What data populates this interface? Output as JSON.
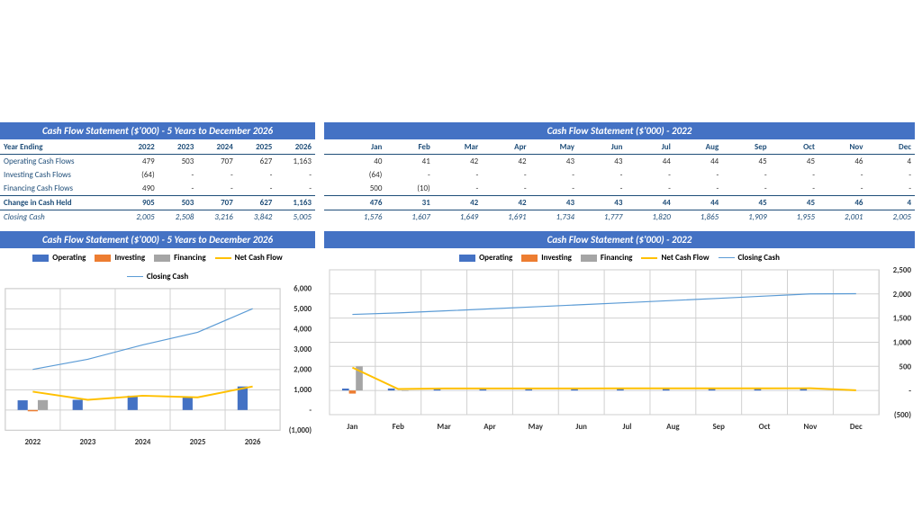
{
  "colors": {
    "header_bg": "#4472c4",
    "header_fg": "#ffffff",
    "navy": "#1f4e79",
    "operating": "#4472c4",
    "investing": "#ed7d31",
    "financing": "#a5a5a5",
    "net_cash": "#ffc000",
    "closing": "#5b9bd5",
    "grid": "#d0d0d0",
    "bg": "#ffffff"
  },
  "typography": {
    "font": "Calibri, Arial, sans-serif",
    "title_size": 11,
    "table_size": 9,
    "legend_size": 9
  },
  "left_table": {
    "title": "Cash Flow Statement ($'000) - 5 Years to December 2026",
    "header_label": "Year Ending",
    "columns": [
      "2022",
      "2023",
      "2024",
      "2025",
      "2026"
    ],
    "rows": [
      {
        "label": "Operating Cash Flows",
        "vals": [
          "479",
          "503",
          "707",
          "627",
          "1,163"
        ]
      },
      {
        "label": "Investing Cash Flows",
        "vals": [
          "(64)",
          "-",
          "-",
          "-",
          "-"
        ]
      },
      {
        "label": "Financing Cash Flows",
        "vals": [
          "490",
          "-",
          "-",
          "-",
          "-"
        ]
      }
    ],
    "change": {
      "label": "Change in Cash Held",
      "vals": [
        "905",
        "503",
        "707",
        "627",
        "1,163"
      ]
    },
    "closing": {
      "label": "Closing Cash",
      "vals": [
        "2,005",
        "2,508",
        "3,216",
        "3,842",
        "5,005"
      ]
    }
  },
  "right_table": {
    "title": "Cash Flow Statement ($'000) - 2022",
    "columns": [
      "Jan",
      "Feb",
      "Mar",
      "Apr",
      "May",
      "Jun",
      "Jul",
      "Aug",
      "Sep",
      "Oct",
      "Nov",
      "Dec"
    ],
    "rows": [
      {
        "vals": [
          "40",
          "41",
          "42",
          "42",
          "43",
          "43",
          "44",
          "44",
          "45",
          "45",
          "46",
          "4"
        ]
      },
      {
        "vals": [
          "(64)",
          "-",
          "-",
          "-",
          "-",
          "-",
          "-",
          "-",
          "-",
          "-",
          "-",
          "-"
        ]
      },
      {
        "vals": [
          "500",
          "(10)",
          "-",
          "-",
          "-",
          "-",
          "-",
          "-",
          "-",
          "-",
          "-",
          "-"
        ]
      }
    ],
    "change": {
      "vals": [
        "476",
        "31",
        "42",
        "42",
        "43",
        "43",
        "44",
        "44",
        "45",
        "45",
        "46",
        "4"
      ]
    },
    "closing": {
      "vals": [
        "1,576",
        "1,607",
        "1,649",
        "1,691",
        "1,734",
        "1,777",
        "1,820",
        "1,865",
        "1,909",
        "1,955",
        "2,001",
        "2,005"
      ]
    }
  },
  "legend_items": [
    {
      "label": "Operating",
      "type": "box",
      "color": "#4472c4"
    },
    {
      "label": "Investing",
      "type": "box",
      "color": "#ed7d31"
    },
    {
      "label": "Financing",
      "type": "box",
      "color": "#a5a5a5"
    },
    {
      "label": "Net Cash Flow",
      "type": "line",
      "color": "#ffc000"
    },
    {
      "label": "Closing Cash",
      "type": "thin",
      "color": "#5b9bd5"
    }
  ],
  "left_chart": {
    "title": "Cash Flow Statement ($'000) - 5 Years to December 2026",
    "categories": [
      "2022",
      "2023",
      "2024",
      "2025",
      "2026"
    ],
    "ylim": [
      -1000,
      6000
    ],
    "ytick_step": 1000,
    "ytick_labels": [
      "(1,000)",
      "-",
      "1,000",
      "2,000",
      "3,000",
      "4,000",
      "5,000",
      "6,000"
    ],
    "operating": [
      479,
      503,
      707,
      627,
      1163
    ],
    "investing": [
      -64,
      0,
      0,
      0,
      0
    ],
    "financing": [
      490,
      0,
      0,
      0,
      0
    ],
    "net_cash": [
      905,
      503,
      707,
      627,
      1163
    ],
    "closing": [
      2005,
      2508,
      3216,
      3842,
      5005
    ],
    "bar_cluster_width": 0.55,
    "line_width": 2
  },
  "right_chart": {
    "title": "Cash Flow Statement ($'000) - 2022",
    "categories": [
      "Jan",
      "Feb",
      "Mar",
      "Apr",
      "May",
      "Jun",
      "Jul",
      "Aug",
      "Sep",
      "Oct",
      "Nov",
      "Dec"
    ],
    "ylim": [
      -500,
      2500
    ],
    "ytick_step": 500,
    "ytick_labels": [
      "(500)",
      "-",
      "500",
      "1,000",
      "1,500",
      "2,000",
      "2,500"
    ],
    "operating": [
      40,
      41,
      42,
      42,
      43,
      43,
      44,
      44,
      45,
      45,
      46,
      4
    ],
    "investing": [
      -64,
      0,
      0,
      0,
      0,
      0,
      0,
      0,
      0,
      0,
      0,
      0
    ],
    "financing": [
      500,
      -10,
      0,
      0,
      0,
      0,
      0,
      0,
      0,
      0,
      0,
      0
    ],
    "net_cash": [
      476,
      31,
      42,
      42,
      43,
      43,
      44,
      44,
      45,
      45,
      46,
      4
    ],
    "closing": [
      1576,
      1607,
      1649,
      1691,
      1734,
      1777,
      1820,
      1865,
      1909,
      1955,
      2001,
      2005
    ],
    "bar_cluster_width": 0.45,
    "line_width": 2
  }
}
